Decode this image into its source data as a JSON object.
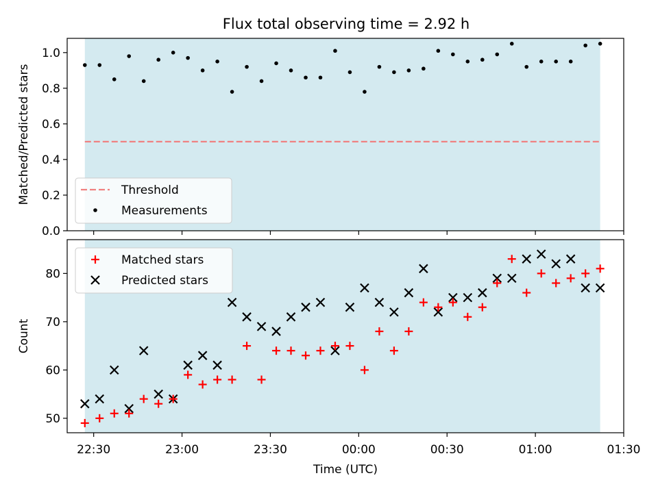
{
  "title": "Flux total observing time = 2.92 h",
  "colors": {
    "background_band": "#d4eaf0",
    "threshold": "#f08080",
    "matched": "#ff0000",
    "predicted": "#000000",
    "measurement": "#000000"
  },
  "chart_data": [
    {
      "type": "scatter",
      "name": "ratio-panel",
      "ylabel": "Matched/Predicted stars",
      "ylim": [
        0.0,
        1.08
      ],
      "yticks": [
        0.0,
        0.2,
        0.4,
        0.6,
        0.8,
        1.0
      ],
      "ytick_labels": [
        "0.0",
        "0.2",
        "0.4",
        "0.6",
        "0.8",
        "1.0"
      ],
      "legend": {
        "location": "lower left",
        "entries": [
          {
            "label": "Threshold",
            "marker": "dashed-line"
          },
          {
            "label": "Measurements",
            "marker": "dot"
          }
        ]
      },
      "threshold": 0.5,
      "shaded_span": [
        "22:27",
        "01:22"
      ],
      "series": [
        {
          "name": "Measurements",
          "x": [
            "22:27",
            "22:32",
            "22:37",
            "22:42",
            "22:47",
            "22:52",
            "22:57",
            "23:02",
            "23:07",
            "23:12",
            "23:17",
            "23:22",
            "23:27",
            "23:32",
            "23:37",
            "23:42",
            "23:47",
            "23:52",
            "23:57",
            "00:02",
            "00:07",
            "00:12",
            "00:17",
            "00:22",
            "00:27",
            "00:32",
            "00:37",
            "00:42",
            "00:47",
            "00:52",
            "00:57",
            "01:02",
            "01:07",
            "01:12",
            "01:17",
            "01:22"
          ],
          "values": [
            0.93,
            0.93,
            0.85,
            0.98,
            0.84,
            0.96,
            1.0,
            0.97,
            0.9,
            0.95,
            0.78,
            0.92,
            0.84,
            0.94,
            0.9,
            0.86,
            0.86,
            1.01,
            0.89,
            0.78,
            0.92,
            0.89,
            0.9,
            0.91,
            1.01,
            0.99,
            0.95,
            0.96,
            0.99,
            1.05,
            0.92,
            0.95,
            0.95,
            0.95,
            1.04,
            1.05
          ]
        }
      ]
    },
    {
      "type": "scatter",
      "name": "count-panel",
      "xlabel": "Time (UTC)",
      "ylabel": "Count",
      "ylim": [
        47,
        87
      ],
      "yticks": [
        50,
        60,
        70,
        80
      ],
      "ytick_labels": [
        "50",
        "60",
        "70",
        "80"
      ],
      "xlim": [
        "22:21",
        "01:30"
      ],
      "xticks": [
        "22:30",
        "23:00",
        "23:30",
        "00:00",
        "00:30",
        "01:00",
        "01:30"
      ],
      "legend": {
        "location": "upper left",
        "entries": [
          {
            "label": "Matched stars",
            "marker": "plus"
          },
          {
            "label": "Predicted stars",
            "marker": "cross"
          }
        ]
      },
      "shaded_span": [
        "22:27",
        "01:22"
      ],
      "series": [
        {
          "name": "Matched stars",
          "x": [
            "22:27",
            "22:32",
            "22:37",
            "22:42",
            "22:47",
            "22:52",
            "22:57",
            "23:02",
            "23:07",
            "23:12",
            "23:17",
            "23:22",
            "23:27",
            "23:32",
            "23:37",
            "23:42",
            "23:47",
            "23:52",
            "23:57",
            "00:02",
            "00:07",
            "00:12",
            "00:17",
            "00:22",
            "00:27",
            "00:32",
            "00:37",
            "00:42",
            "00:47",
            "00:52",
            "00:57",
            "01:02",
            "01:07",
            "01:12",
            "01:17",
            "01:22"
          ],
          "values": [
            49,
            50,
            51,
            51,
            54,
            53,
            54,
            59,
            57,
            58,
            58,
            65,
            58,
            64,
            64,
            63,
            64,
            65,
            65,
            60,
            68,
            64,
            68,
            74,
            73,
            74,
            71,
            73,
            78,
            83,
            76,
            80,
            78,
            79,
            80,
            81
          ]
        },
        {
          "name": "Predicted stars",
          "x": [
            "22:27",
            "22:32",
            "22:37",
            "22:42",
            "22:47",
            "22:52",
            "22:57",
            "23:02",
            "23:07",
            "23:12",
            "23:17",
            "23:22",
            "23:27",
            "23:32",
            "23:37",
            "23:42",
            "23:47",
            "23:52",
            "23:57",
            "00:02",
            "00:07",
            "00:12",
            "00:17",
            "00:22",
            "00:27",
            "00:32",
            "00:37",
            "00:42",
            "00:47",
            "00:52",
            "00:57",
            "01:02",
            "01:07",
            "01:12",
            "01:17",
            "01:22"
          ],
          "values": [
            53,
            54,
            60,
            52,
            64,
            55,
            54,
            61,
            63,
            61,
            74,
            71,
            69,
            68,
            71,
            73,
            74,
            64,
            73,
            77,
            74,
            72,
            76,
            81,
            72,
            75,
            75,
            76,
            79,
            79,
            83,
            84,
            82,
            83,
            77,
            77
          ]
        }
      ]
    }
  ]
}
